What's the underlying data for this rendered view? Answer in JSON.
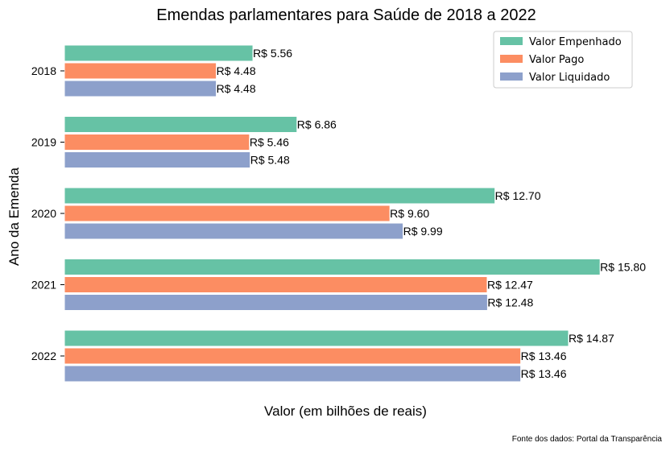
{
  "chart_data": {
    "type": "bar",
    "orientation": "horizontal",
    "title": "Emendas parlamentares para Saúde de 2018 a 2022",
    "xlabel": "Valor (em bilhões de reais)",
    "ylabel": "Ano da Emenda",
    "categories": [
      "2018",
      "2019",
      "2020",
      "2021",
      "2022"
    ],
    "series": [
      {
        "name": "Valor Empenhado",
        "color": "#66c2a5",
        "values": [
          5.56,
          6.86,
          12.7,
          15.8,
          14.87
        ],
        "labels": [
          "R$ 5.56",
          "R$ 6.86",
          "R$ 12.70",
          "R$ 15.80",
          "R$ 14.87"
        ]
      },
      {
        "name": "Valor Pago",
        "color": "#fc8d62",
        "values": [
          4.48,
          5.46,
          9.6,
          12.47,
          13.46
        ],
        "labels": [
          "R$ 4.48",
          "R$ 5.46",
          "R$ 9.60",
          "R$ 12.47",
          "R$ 13.46"
        ]
      },
      {
        "name": "Valor Liquidado",
        "color": "#8da0cb",
        "values": [
          4.48,
          5.48,
          9.99,
          12.48,
          13.46
        ],
        "labels": [
          "R$ 4.48",
          "R$ 5.48",
          "R$ 9.99",
          "R$ 12.48",
          "R$ 13.46"
        ]
      }
    ],
    "xlim": [
      0,
      17.4
    ],
    "grid": false,
    "legend_position": "top-right",
    "source_note": "Fonte dos dados: Portal da Transparência"
  }
}
